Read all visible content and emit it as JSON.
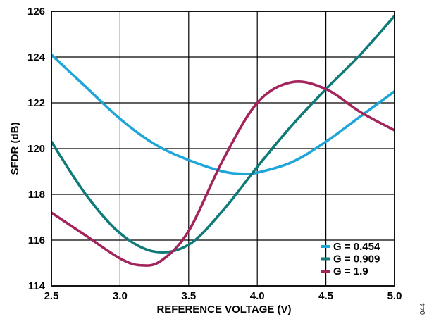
{
  "figure_id": "044",
  "chart_data": {
    "type": "line",
    "title": "",
    "xlabel": "REFERENCE VOLTAGE (V)",
    "ylabel": "SFDR (dB)",
    "xlim": [
      2.5,
      5.0
    ],
    "ylim": [
      114,
      126
    ],
    "x_ticks": [
      "2.5",
      "3.0",
      "3.5",
      "4.0",
      "4.5",
      "5.0"
    ],
    "y_ticks": [
      "114",
      "116",
      "118",
      "120",
      "122",
      "124",
      "126"
    ],
    "grid": true,
    "legend_position": "bottom-right",
    "series": [
      {
        "name": "G = 0.454",
        "color": "#1ea6d8",
        "x": [
          2.5,
          2.75,
          3.0,
          3.25,
          3.5,
          3.75,
          3.9,
          4.0,
          4.25,
          4.5,
          4.75,
          5.0
        ],
        "y": [
          124.1,
          122.7,
          121.3,
          120.2,
          119.5,
          119.0,
          118.9,
          118.95,
          119.4,
          120.3,
          121.4,
          122.5
        ]
      },
      {
        "name": "G = 0.909",
        "color": "#0f7a78",
        "x": [
          2.5,
          2.75,
          3.0,
          3.25,
          3.5,
          3.75,
          4.0,
          4.25,
          4.5,
          4.75,
          5.0
        ],
        "y": [
          120.3,
          118.0,
          116.3,
          115.5,
          115.8,
          117.3,
          119.2,
          121.0,
          122.6,
          124.1,
          125.8
        ]
      },
      {
        "name": "G = 1.9",
        "color": "#a3245a",
        "x": [
          2.5,
          2.75,
          3.0,
          3.15,
          3.3,
          3.5,
          3.75,
          4.0,
          4.25,
          4.5,
          4.75,
          5.0
        ],
        "y": [
          117.2,
          116.2,
          115.2,
          114.9,
          115.1,
          116.4,
          119.5,
          122.0,
          122.9,
          122.6,
          121.6,
          120.8
        ]
      }
    ]
  }
}
